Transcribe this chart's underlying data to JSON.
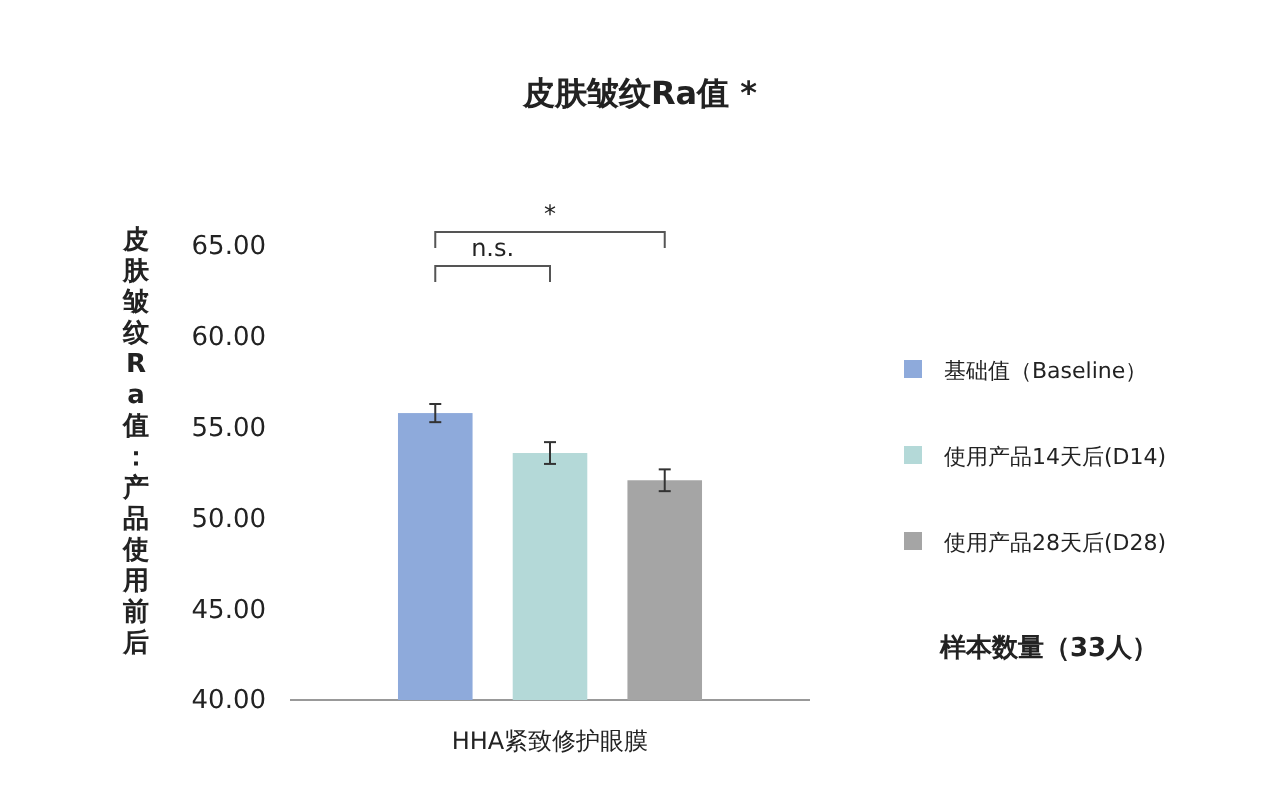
{
  "chart_data": {
    "type": "bar",
    "title": "皮肤皱纹Ra值 *",
    "ylabel": "皮肤皱纹Ra值：产品使用前后",
    "categories": [
      "HHA紧致修护眼膜"
    ],
    "series": [
      {
        "name": "基础值（Baseline）",
        "color": "#8eaadb",
        "values": [
          55.8
        ],
        "errors": [
          0.5
        ]
      },
      {
        "name": "使用产品14天后(D14)",
        "color": "#b4d9d8",
        "values": [
          53.6
        ],
        "errors": [
          0.6
        ]
      },
      {
        "name": "使用产品28天后(D28)",
        "color": "#a5a5a5",
        "values": [
          52.1
        ],
        "errors": [
          0.6
        ]
      }
    ],
    "ylim": [
      40,
      65
    ],
    "yticks": [
      {
        "value": 40,
        "label": "40.00"
      },
      {
        "value": 45,
        "label": "45.00"
      },
      {
        "value": 50,
        "label": "50.00"
      },
      {
        "value": 55,
        "label": "55.00"
      },
      {
        "value": 60,
        "label": "60.00"
      },
      {
        "value": 65,
        "label": "65.00"
      }
    ],
    "legend": "right",
    "grid": false,
    "annotations": [
      "n.s.",
      "*",
      "样本数量（33人）"
    ]
  }
}
